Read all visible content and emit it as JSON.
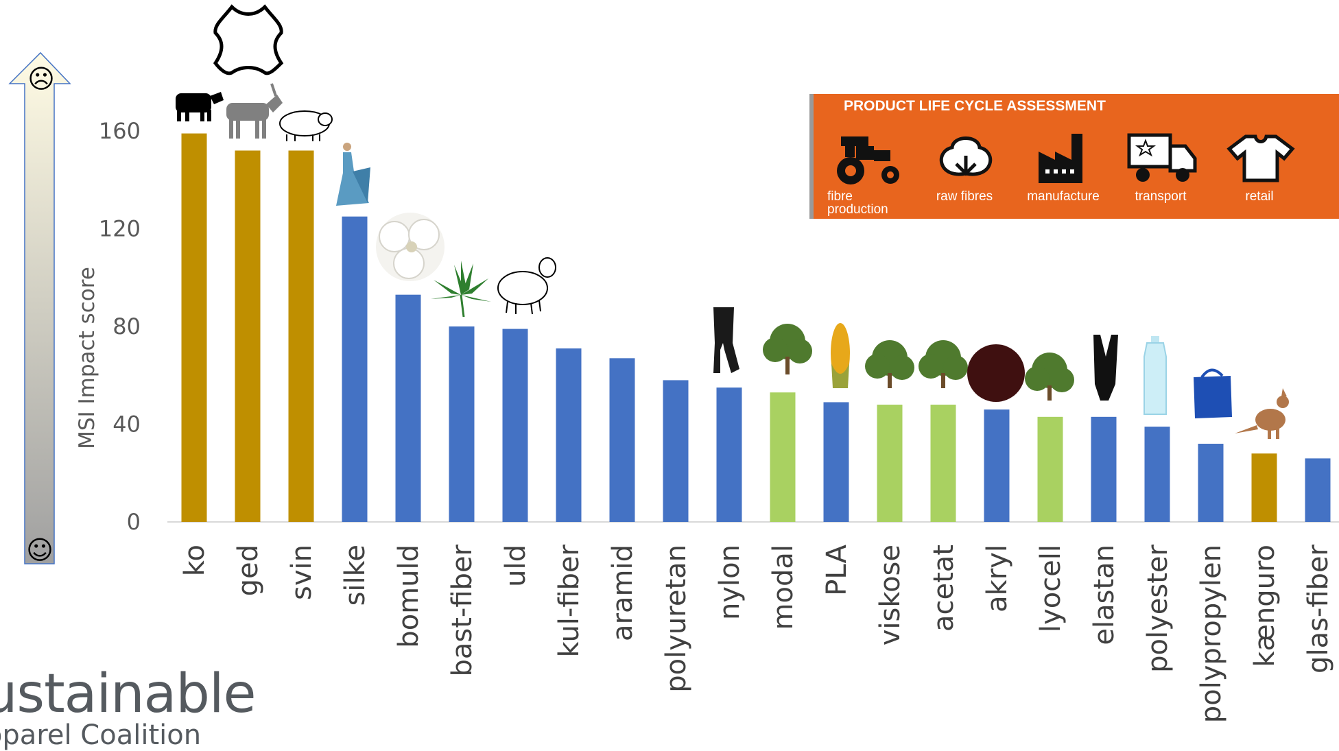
{
  "chart_data": {
    "type": "bar",
    "ylabel": "MSI Impact score",
    "ylim": [
      0,
      160
    ],
    "yticks": [
      0,
      40,
      80,
      120,
      160
    ],
    "categories": [
      "ko",
      "ged",
      "svin",
      "silke",
      "bomuld",
      "bast-fiber",
      "uld",
      "kul-fiber",
      "aramid",
      "polyuretan",
      "nylon",
      "modal",
      "PLA",
      "viskose",
      "acetat",
      "akryl",
      "lyocell",
      "elastan",
      "polyester",
      "polypropylen",
      "kænguro",
      "glas-fiber"
    ],
    "values": [
      159,
      152,
      152,
      125,
      93,
      80,
      79,
      71,
      67,
      58,
      55,
      53,
      49,
      48,
      48,
      46,
      43,
      43,
      39,
      32,
      28,
      26
    ],
    "groups": [
      "animal",
      "animal",
      "animal",
      "synthetic",
      "synthetic",
      "synthetic",
      "synthetic",
      "synthetic",
      "synthetic",
      "synthetic",
      "synthetic",
      "cellulose",
      "synthetic",
      "cellulose",
      "cellulose",
      "synthetic",
      "cellulose",
      "synthetic",
      "synthetic",
      "synthetic",
      "animal",
      "synthetic"
    ],
    "colors": {
      "animal": "#bf8f00",
      "synthetic": "#4472c4",
      "cellulose": "#a9d161"
    },
    "scale_arrow": {
      "top_symbol": "☹",
      "bottom_symbol": "☺"
    },
    "grid": false,
    "legend": "none"
  },
  "lca_banner": {
    "title": "PRODUCT LIFE CYCLE ASSESSMENT",
    "stages": [
      {
        "label": "fibre production",
        "icon": "tractor-icon"
      },
      {
        "label": "raw fibres",
        "icon": "cotton-icon"
      },
      {
        "label": "manufacture",
        "icon": "factory-icon"
      },
      {
        "label": "transport",
        "icon": "truck-icon"
      },
      {
        "label": "retail",
        "icon": "tshirt-icon"
      }
    ]
  },
  "logo": {
    "line1": "ustainable",
    "line2": "pparel Coalition"
  },
  "icons": [
    "leather-hide-icon",
    "cow-icon",
    "goat-icon",
    "pig-icon",
    "dress-icon",
    "cotton-boll-icon",
    "hemp-leaf-icon",
    "sheep-icon",
    "stockings-icon",
    "tree-icon",
    "corn-icon",
    "fur-ball-icon",
    "swimsuit-icon",
    "bottle-icon",
    "bag-icon",
    "kangaroo-icon"
  ]
}
